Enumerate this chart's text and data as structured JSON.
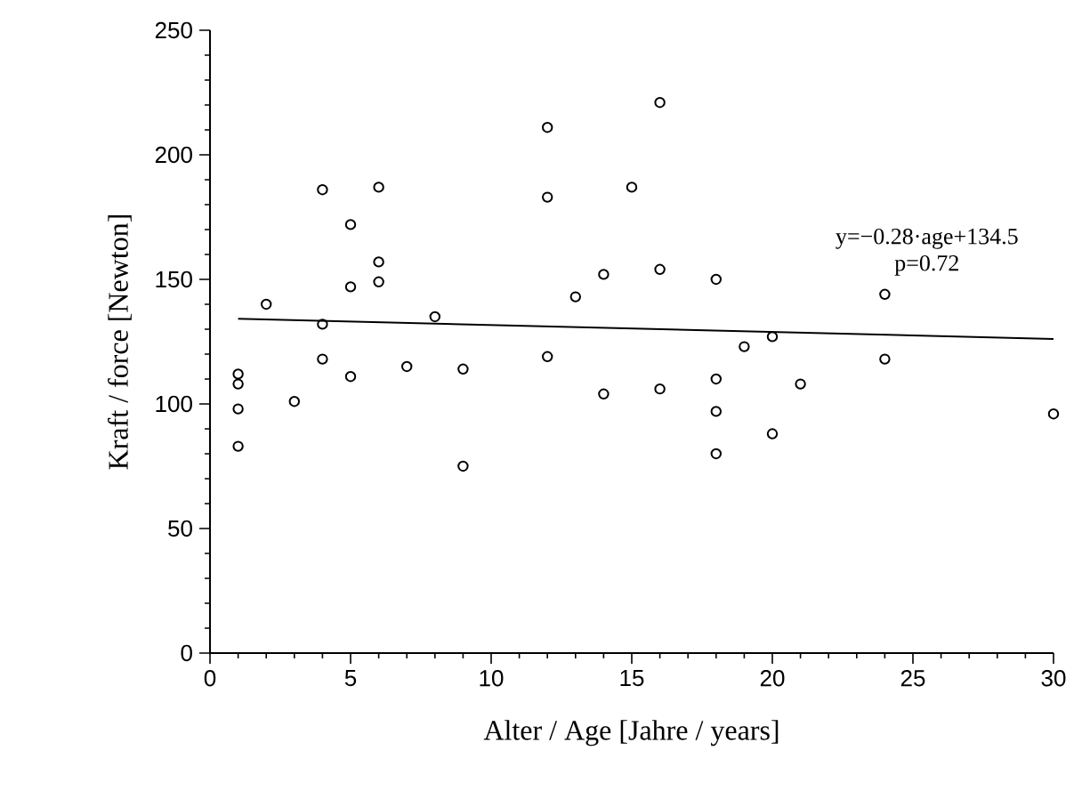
{
  "chart_data": {
    "type": "scatter",
    "xlabel": "Alter / Age [Jahre / years]",
    "ylabel": "Kraft / force [Newton]",
    "xlim": [
      0,
      30
    ],
    "xticks": [
      0,
      5,
      10,
      15,
      20,
      25,
      30
    ],
    "ylim": [
      0,
      250
    ],
    "yticks": [
      0,
      50,
      100,
      150,
      200,
      250
    ],
    "marker": "circle",
    "annotations": [
      "y=−0.28·age+134.5",
      "p=0.72"
    ],
    "series": [
      {
        "color": "#000000",
        "x": [
          1,
          1,
          1,
          1,
          2,
          3,
          4,
          4,
          4,
          5,
          5,
          5,
          6,
          6,
          6,
          7,
          8,
          9,
          9,
          12,
          12,
          12,
          13,
          14,
          14,
          15,
          16,
          16,
          16,
          18,
          18,
          18,
          18,
          19,
          20,
          20,
          21,
          24,
          24,
          30
        ],
        "values": [
          112,
          108,
          98,
          83,
          140,
          101,
          186,
          132,
          118,
          172,
          147,
          111,
          187,
          157,
          149,
          115,
          135,
          114,
          75,
          211,
          183,
          119,
          143,
          152,
          104,
          187,
          221,
          154,
          106,
          150,
          110,
          97,
          80,
          123,
          127,
          88,
          108,
          144,
          118,
          96
        ]
      },
      {
        "type": "line",
        "color": "#000000",
        "marker": "none",
        "x": [
          1,
          30
        ],
        "values": [
          134.2,
          126.1
        ]
      }
    ]
  }
}
